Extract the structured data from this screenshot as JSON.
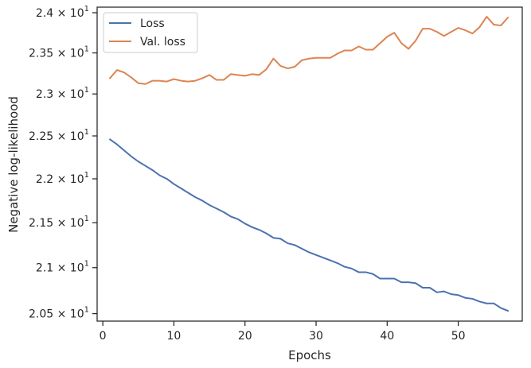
{
  "chart_data": {
    "type": "line",
    "title": "",
    "xlabel": "Epochs",
    "ylabel": "Negative log-likelihood",
    "log_scale_y": true,
    "xlim": [
      -0.8,
      59.0
    ],
    "ylim": [
      20.42,
      24.07
    ],
    "xticks": [
      0,
      10,
      20,
      30,
      40,
      50
    ],
    "xtick_labels": [
      "0",
      "10",
      "20",
      "30",
      "40",
      "50"
    ],
    "yticks": [
      {
        "value": 20.5,
        "mantissa": "2.05",
        "exponent": "1"
      },
      {
        "value": 21.0,
        "mantissa": "2.1",
        "exponent": "1"
      },
      {
        "value": 21.5,
        "mantissa": "2.15",
        "exponent": "1"
      },
      {
        "value": 22.0,
        "mantissa": "2.2",
        "exponent": "1"
      },
      {
        "value": 22.5,
        "mantissa": "2.25",
        "exponent": "1"
      },
      {
        "value": 23.0,
        "mantissa": "2.3",
        "exponent": "1"
      },
      {
        "value": 23.5,
        "mantissa": "2.35",
        "exponent": "1"
      },
      {
        "value": 24.0,
        "mantissa": "2.4",
        "exponent": "1"
      }
    ],
    "grid": false,
    "legend_position": "top-left",
    "x": [
      1,
      2,
      3,
      4,
      5,
      6,
      7,
      8,
      9,
      10,
      11,
      12,
      13,
      14,
      15,
      16,
      17,
      18,
      19,
      20,
      21,
      22,
      23,
      24,
      25,
      26,
      27,
      28,
      29,
      30,
      31,
      32,
      33,
      34,
      35,
      36,
      37,
      38,
      39,
      40,
      41,
      42,
      43,
      44,
      45,
      46,
      47,
      48,
      49,
      50,
      51,
      52,
      53,
      54,
      55,
      56,
      57
    ],
    "series": [
      {
        "name": "Loss",
        "color": "#4c72b0",
        "values": [
          22.46,
          22.4,
          22.33,
          22.26,
          22.2,
          22.15,
          22.1,
          22.04,
          22.0,
          21.94,
          21.89,
          21.84,
          21.79,
          21.75,
          21.7,
          21.66,
          21.62,
          21.57,
          21.54,
          21.49,
          21.45,
          21.42,
          21.38,
          21.33,
          21.32,
          21.27,
          21.25,
          21.21,
          21.17,
          21.14,
          21.11,
          21.08,
          21.05,
          21.01,
          20.99,
          20.95,
          20.95,
          20.93,
          20.88,
          20.88,
          20.88,
          20.84,
          20.84,
          20.83,
          20.78,
          20.78,
          20.73,
          20.74,
          20.71,
          20.7,
          20.67,
          20.66,
          20.63,
          20.61,
          20.61,
          20.56,
          20.53
        ]
      },
      {
        "name": "Val. loss",
        "color": "#dd8452",
        "values": [
          23.19,
          23.29,
          23.26,
          23.2,
          23.13,
          23.12,
          23.16,
          23.16,
          23.15,
          23.18,
          23.16,
          23.15,
          23.16,
          23.19,
          23.23,
          23.17,
          23.17,
          23.24,
          23.23,
          23.22,
          23.24,
          23.23,
          23.3,
          23.43,
          23.34,
          23.31,
          23.33,
          23.41,
          23.43,
          23.44,
          23.44,
          23.44,
          23.49,
          23.53,
          23.53,
          23.58,
          23.54,
          23.54,
          23.62,
          23.7,
          23.75,
          23.62,
          23.55,
          23.65,
          23.8,
          23.8,
          23.76,
          23.71,
          23.76,
          23.81,
          23.78,
          23.74,
          23.82,
          23.95,
          23.85,
          23.84,
          23.94
        ]
      }
    ]
  }
}
